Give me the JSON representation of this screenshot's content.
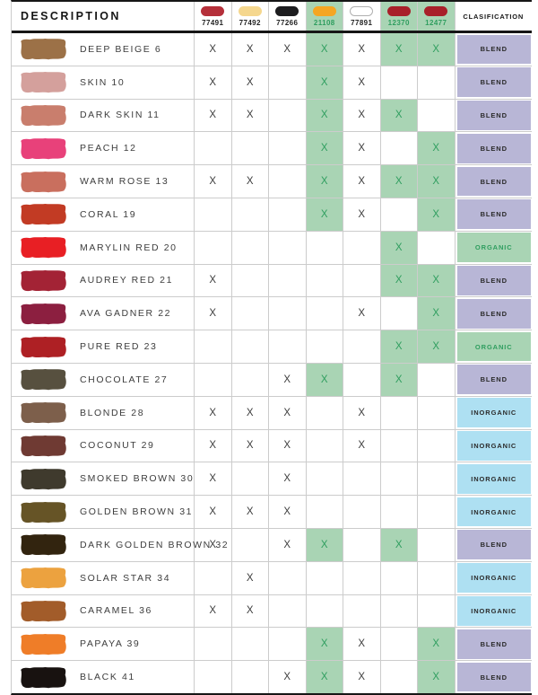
{
  "table": {
    "description_header": "DESCRIPTION",
    "classification_header": "CLASIFICATION",
    "mark_symbol": "X",
    "columns": [
      {
        "code": "77491",
        "pill_color": "#b5303a",
        "green": false
      },
      {
        "code": "77492",
        "pill_color": "#f5d78e",
        "green": false
      },
      {
        "code": "77266",
        "pill_color": "#1d1d1f",
        "green": false
      },
      {
        "code": "21108",
        "pill_color": "#f5a623",
        "green": true
      },
      {
        "code": "77891",
        "pill_color": "#ffffff",
        "pill_border": "#b0b0b0",
        "green": false
      },
      {
        "code": "12370",
        "pill_color": "#a8202a",
        "green": true
      },
      {
        "code": "12477",
        "pill_color": "#a8202a",
        "green": true
      }
    ],
    "rows": [
      {
        "name": "DEEP BEIGE 6",
        "swatch": "#9c7147",
        "marks": [
          1,
          1,
          1,
          1,
          1,
          1,
          1
        ],
        "classification": "BLEND"
      },
      {
        "name": "SKIN 10",
        "swatch": "#d4a09c",
        "marks": [
          1,
          1,
          0,
          1,
          1,
          0,
          0
        ],
        "classification": "BLEND"
      },
      {
        "name": "DARK SKIN 11",
        "swatch": "#c97e6d",
        "marks": [
          1,
          1,
          0,
          1,
          1,
          1,
          0
        ],
        "classification": "BLEND"
      },
      {
        "name": "PEACH 12",
        "swatch": "#e8417a",
        "marks": [
          0,
          0,
          0,
          1,
          1,
          0,
          1
        ],
        "classification": "BLEND"
      },
      {
        "name": "WARM ROSE 13",
        "swatch": "#c96f5e",
        "marks": [
          1,
          1,
          0,
          1,
          1,
          1,
          1
        ],
        "classification": "BLEND"
      },
      {
        "name": "CORAL 19",
        "swatch": "#c23b24",
        "marks": [
          0,
          0,
          0,
          1,
          1,
          0,
          1
        ],
        "classification": "BLEND"
      },
      {
        "name": "MARYLIN RED 20",
        "swatch": "#e81f24",
        "marks": [
          0,
          0,
          0,
          0,
          0,
          1,
          0
        ],
        "classification": "ORGANIC"
      },
      {
        "name": "AUDREY RED 21",
        "swatch": "#a32335",
        "marks": [
          1,
          0,
          0,
          0,
          0,
          1,
          1
        ],
        "classification": "BLEND"
      },
      {
        "name": "AVA GADNER 22",
        "swatch": "#8c1f40",
        "marks": [
          1,
          0,
          0,
          0,
          1,
          0,
          1
        ],
        "classification": "BLEND"
      },
      {
        "name": "PURE RED 23",
        "swatch": "#ae2024",
        "marks": [
          0,
          0,
          0,
          0,
          0,
          1,
          1
        ],
        "classification": "ORGANIC"
      },
      {
        "name": "CHOCOLATE 27",
        "swatch": "#57503f",
        "marks": [
          0,
          0,
          1,
          1,
          0,
          1,
          0
        ],
        "classification": "BLEND"
      },
      {
        "name": "BLONDE 28",
        "swatch": "#7d5f4b",
        "marks": [
          1,
          1,
          1,
          0,
          1,
          0,
          0
        ],
        "classification": "INORGANIC"
      },
      {
        "name": "COCONUT 29",
        "swatch": "#6f3a33",
        "marks": [
          1,
          1,
          1,
          0,
          1,
          0,
          0
        ],
        "classification": "INORGANIC"
      },
      {
        "name": "SMOKED BROWN 30",
        "swatch": "#3f3a2d",
        "marks": [
          1,
          0,
          1,
          0,
          0,
          0,
          0
        ],
        "classification": "INORGANIC"
      },
      {
        "name": "GOLDEN BROWN 31",
        "swatch": "#665426",
        "marks": [
          1,
          1,
          1,
          0,
          0,
          0,
          0
        ],
        "classification": "INORGANIC"
      },
      {
        "name": "DARK GOLDEN BROWN 32",
        "swatch": "#32240f",
        "marks": [
          1,
          0,
          1,
          1,
          0,
          1,
          0
        ],
        "classification": "BLEND"
      },
      {
        "name": "SOLAR STAR 34",
        "swatch": "#eca23f",
        "marks": [
          0,
          1,
          0,
          0,
          0,
          0,
          0
        ],
        "classification": "INORGANIC"
      },
      {
        "name": "CARAMEL 36",
        "swatch": "#a25c2a",
        "marks": [
          1,
          1,
          0,
          0,
          0,
          0,
          0
        ],
        "classification": "INORGANIC"
      },
      {
        "name": "PAPAYA 39",
        "swatch": "#ef7d28",
        "marks": [
          0,
          0,
          0,
          1,
          1,
          0,
          1
        ],
        "classification": "BLEND"
      },
      {
        "name": "BLACK 41",
        "swatch": "#181210",
        "marks": [
          0,
          0,
          1,
          1,
          1,
          0,
          1
        ],
        "classification": "BLEND"
      }
    ],
    "colors": {
      "green_cell_bg": "#a9d4b4",
      "green_text": "#2f9e5f",
      "dark_text": "#3c3c3c",
      "classification_styles": {
        "BLEND": {
          "bg": "#b8b6d6",
          "text": "#2b2b2b"
        },
        "ORGANIC": {
          "bg": "#a9d4b4",
          "text": "#2f9e5f"
        },
        "INORGANIC": {
          "bg": "#aee0f2",
          "text": "#2b2b2b"
        }
      }
    }
  }
}
